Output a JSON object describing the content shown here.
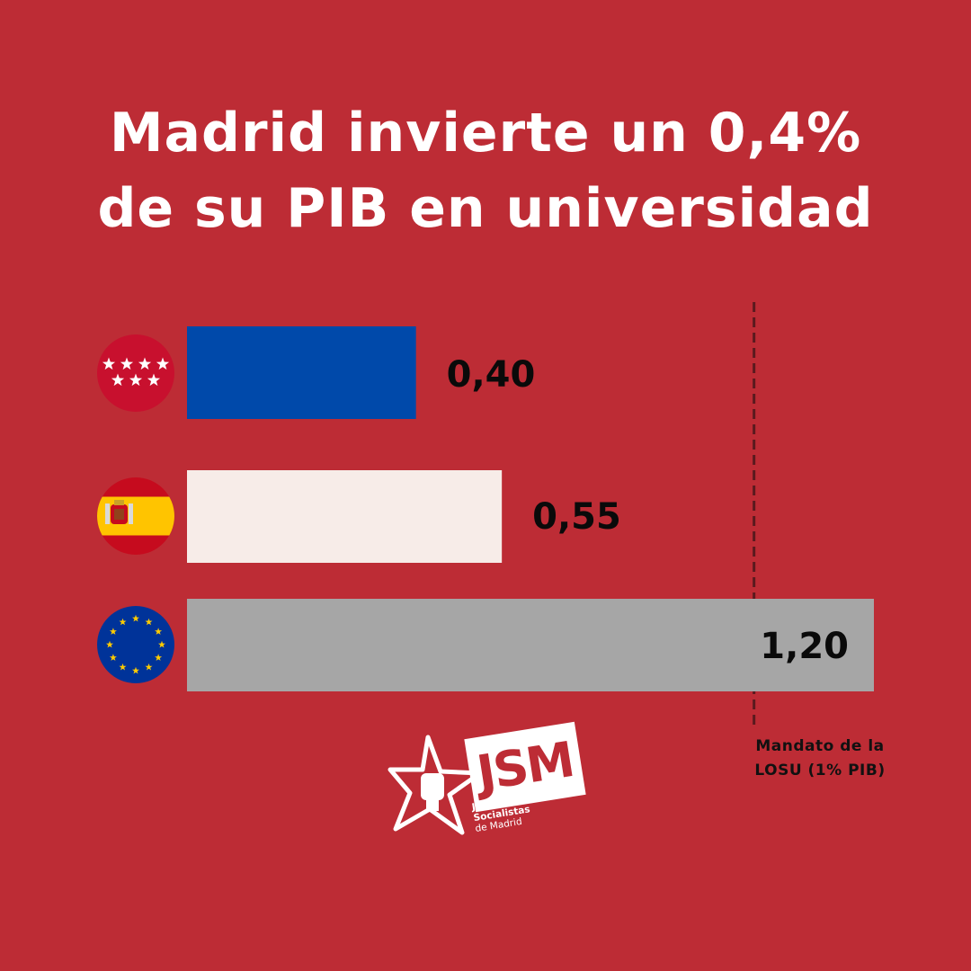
{
  "title": "Madrid invierte un 0,4% de su PIB en universidad",
  "chart_data": {
    "type": "bar",
    "orientation": "horizontal",
    "categories": [
      "flag-comunidad-de-madrid-icon",
      "flag-spain-icon",
      "flag-european-union-icon"
    ],
    "values": [
      0.4,
      0.55,
      1.2
    ],
    "value_labels": [
      "0,40",
      "0,55",
      "1,20"
    ],
    "bar_colors": [
      "#0049aa",
      "#f7ece8",
      "#a6a6a6"
    ],
    "xlim": [
      0,
      1.2
    ],
    "grid": false,
    "reference_line": {
      "value": 1.0,
      "label": "Mandato de la\nLOSU (1% PIB)",
      "style": "dashed",
      "color": "#5a1a1e"
    }
  },
  "logo": {
    "text": "JSM",
    "subtitle_line1": "Juventudes Socialistas",
    "subtitle_line2": "de Madrid"
  },
  "colors": {
    "background": "#bd2c35",
    "title": "#ffffff",
    "value_text": "#0a0a0a"
  }
}
